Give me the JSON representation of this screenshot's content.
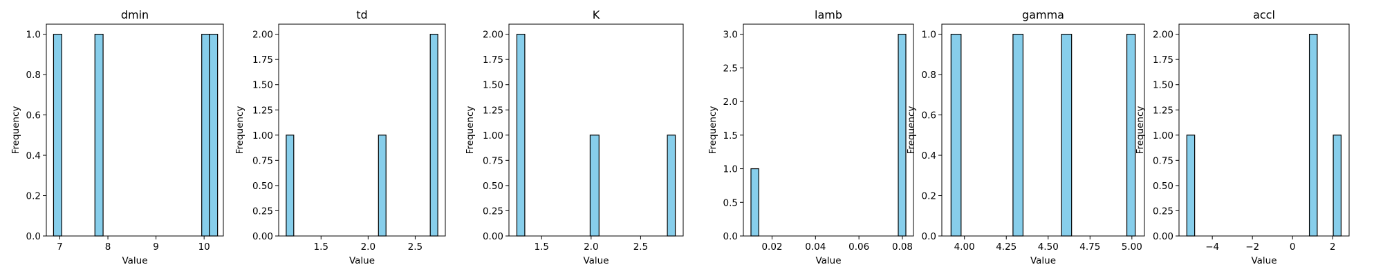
{
  "chart_data": [
    {
      "type": "bar",
      "title": "dmin",
      "xlabel": "Value",
      "ylabel": "Frequency",
      "bar_color": "#87ceeb",
      "edge_color": "#000000",
      "xlim": [
        6.72,
        10.4
      ],
      "ylim": [
        0,
        1.05
      ],
      "xticks": [
        7,
        8,
        9,
        10
      ],
      "xtick_labels": [
        "7",
        "8",
        "9",
        "10"
      ],
      "yticks": [
        0,
        0.2,
        0.4,
        0.6,
        0.8,
        1.0
      ],
      "ytick_labels": [
        "0.0",
        "0.2",
        "0.4",
        "0.6",
        "0.8",
        "1.0"
      ],
      "bins": [
        {
          "x0": 6.87,
          "x1": 7.04,
          "count": 1
        },
        {
          "x0": 7.73,
          "x1": 7.9,
          "count": 1
        },
        {
          "x0": 9.95,
          "x1": 10.11,
          "count": 1
        },
        {
          "x0": 10.11,
          "x1": 10.28,
          "count": 1
        }
      ]
    },
    {
      "type": "bar",
      "title": "td",
      "xlabel": "Value",
      "ylabel": "Frequency",
      "bar_color": "#87ceeb",
      "edge_color": "#000000",
      "xlim": [
        1.05,
        2.82
      ],
      "ylim": [
        0,
        2.1
      ],
      "xticks": [
        1.5,
        2.0,
        2.5
      ],
      "xtick_labels": [
        "1.5",
        "2.0",
        "2.5"
      ],
      "yticks": [
        0,
        0.25,
        0.5,
        0.75,
        1.0,
        1.25,
        1.5,
        1.75,
        2.0
      ],
      "ytick_labels": [
        "0.00",
        "0.25",
        "0.50",
        "0.75",
        "1.00",
        "1.25",
        "1.50",
        "1.75",
        "2.00"
      ],
      "bins": [
        {
          "x0": 1.13,
          "x1": 1.21,
          "count": 1
        },
        {
          "x0": 2.11,
          "x1": 2.19,
          "count": 1
        },
        {
          "x0": 2.66,
          "x1": 2.74,
          "count": 2
        }
      ]
    },
    {
      "type": "bar",
      "title": "K",
      "xlabel": "Value",
      "ylabel": "Frequency",
      "bar_color": "#87ceeb",
      "edge_color": "#000000",
      "xlim": [
        1.17,
        2.93
      ],
      "ylim": [
        0,
        2.1
      ],
      "xticks": [
        1.5,
        2.0,
        2.5
      ],
      "xtick_labels": [
        "1.5",
        "2.0",
        "2.5"
      ],
      "yticks": [
        0,
        0.25,
        0.5,
        0.75,
        1.0,
        1.25,
        1.5,
        1.75,
        2.0
      ],
      "ytick_labels": [
        "0.00",
        "0.25",
        "0.50",
        "0.75",
        "1.00",
        "1.25",
        "1.50",
        "1.75",
        "2.00"
      ],
      "bins": [
        {
          "x0": 1.25,
          "x1": 1.33,
          "count": 2
        },
        {
          "x0": 1.99,
          "x1": 2.08,
          "count": 1
        },
        {
          "x0": 2.77,
          "x1": 2.85,
          "count": 1
        }
      ]
    },
    {
      "type": "bar",
      "title": "lamb",
      "xlabel": "Value",
      "ylabel": "Frequency",
      "bar_color": "#87ceeb",
      "edge_color": "#000000",
      "xlim": [
        0.0068,
        0.0851
      ],
      "ylim": [
        0,
        3.15
      ],
      "xticks": [
        0.02,
        0.04,
        0.06,
        0.08
      ],
      "xtick_labels": [
        "0.02",
        "0.04",
        "0.06",
        "0.08"
      ],
      "yticks": [
        0,
        0.5,
        1.0,
        1.5,
        2.0,
        2.5,
        3.0
      ],
      "ytick_labels": [
        "0.0",
        "0.5",
        "1.0",
        "1.5",
        "2.0",
        "2.5",
        "3.0"
      ],
      "bins": [
        {
          "x0": 0.0103,
          "x1": 0.0139,
          "count": 1
        },
        {
          "x0": 0.0781,
          "x1": 0.0816,
          "count": 3
        }
      ]
    },
    {
      "type": "bar",
      "title": "gamma",
      "xlabel": "Value",
      "ylabel": "Frequency",
      "bar_color": "#87ceeb",
      "edge_color": "#000000",
      "xlim": [
        3.865,
        5.075
      ],
      "ylim": [
        0,
        1.05
      ],
      "xticks": [
        4.0,
        4.25,
        4.5,
        4.75,
        5.0
      ],
      "xtick_labels": [
        "4.00",
        "4.25",
        "4.50",
        "4.75",
        "5.00"
      ],
      "yticks": [
        0,
        0.2,
        0.4,
        0.6,
        0.8,
        1.0
      ],
      "ytick_labels": [
        "0.0",
        "0.2",
        "0.4",
        "0.6",
        "0.8",
        "1.0"
      ],
      "bins": [
        {
          "x0": 3.92,
          "x1": 3.98,
          "count": 1
        },
        {
          "x0": 4.29,
          "x1": 4.35,
          "count": 1
        },
        {
          "x0": 4.58,
          "x1": 4.64,
          "count": 1
        },
        {
          "x0": 4.97,
          "x1": 5.02,
          "count": 1
        }
      ]
    },
    {
      "type": "bar",
      "title": "accl",
      "xlabel": "Value",
      "ylabel": "Frequency",
      "bar_color": "#87ceeb",
      "edge_color": "#000000",
      "xlim": [
        -5.66,
        2.82
      ],
      "ylim": [
        0,
        2.1
      ],
      "xticks": [
        -4,
        -2,
        0,
        2
      ],
      "xtick_labels": [
        "−4",
        "−2",
        "0",
        "2"
      ],
      "yticks": [
        0,
        0.25,
        0.5,
        0.75,
        1.0,
        1.25,
        1.5,
        1.75,
        2.0
      ],
      "ytick_labels": [
        "0.00",
        "0.25",
        "0.50",
        "0.75",
        "1.00",
        "1.25",
        "1.50",
        "1.75",
        "2.00"
      ],
      "bins": [
        {
          "x0": -5.27,
          "x1": -4.88,
          "count": 1
        },
        {
          "x0": 0.84,
          "x1": 1.23,
          "count": 2
        },
        {
          "x0": 2.03,
          "x1": 2.42,
          "count": 1
        }
      ]
    }
  ]
}
